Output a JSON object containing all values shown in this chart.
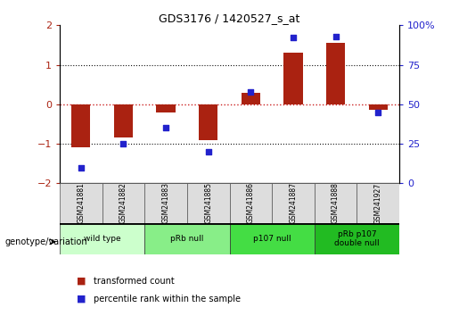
{
  "title": "GDS3176 / 1420527_s_at",
  "samples": [
    "GSM241881",
    "GSM241882",
    "GSM241883",
    "GSM241885",
    "GSM241886",
    "GSM241887",
    "GSM241888",
    "GSM241927"
  ],
  "transformed_count": [
    -1.1,
    -0.85,
    -0.2,
    -0.9,
    0.3,
    1.3,
    1.55,
    -0.15
  ],
  "percentile_rank": [
    10,
    25,
    35,
    20,
    58,
    92,
    93,
    45
  ],
  "ylim_left": [
    -2,
    2
  ],
  "ylim_right": [
    0,
    100
  ],
  "yticks_left": [
    -2,
    -1,
    0,
    1,
    2
  ],
  "yticks_right": [
    0,
    25,
    50,
    75,
    100
  ],
  "bar_color": "#aa2211",
  "dot_color": "#2222cc",
  "hline_zero_color": "#cc2222",
  "hline_1_color": "#111111",
  "genotype_groups": [
    {
      "label": "wild type",
      "start": 0,
      "end": 2,
      "color": "#ccffcc"
    },
    {
      "label": "pRb null",
      "start": 2,
      "end": 4,
      "color": "#88ee88"
    },
    {
      "label": "p107 null",
      "start": 4,
      "end": 6,
      "color": "#44dd44"
    },
    {
      "label": "pRb p107\ndouble null",
      "start": 6,
      "end": 8,
      "color": "#22bb22"
    }
  ],
  "legend_bar_label": "transformed count",
  "legend_dot_label": "percentile rank within the sample",
  "xlabel_arrow_text": "genotype/variation",
  "bar_width": 0.45
}
